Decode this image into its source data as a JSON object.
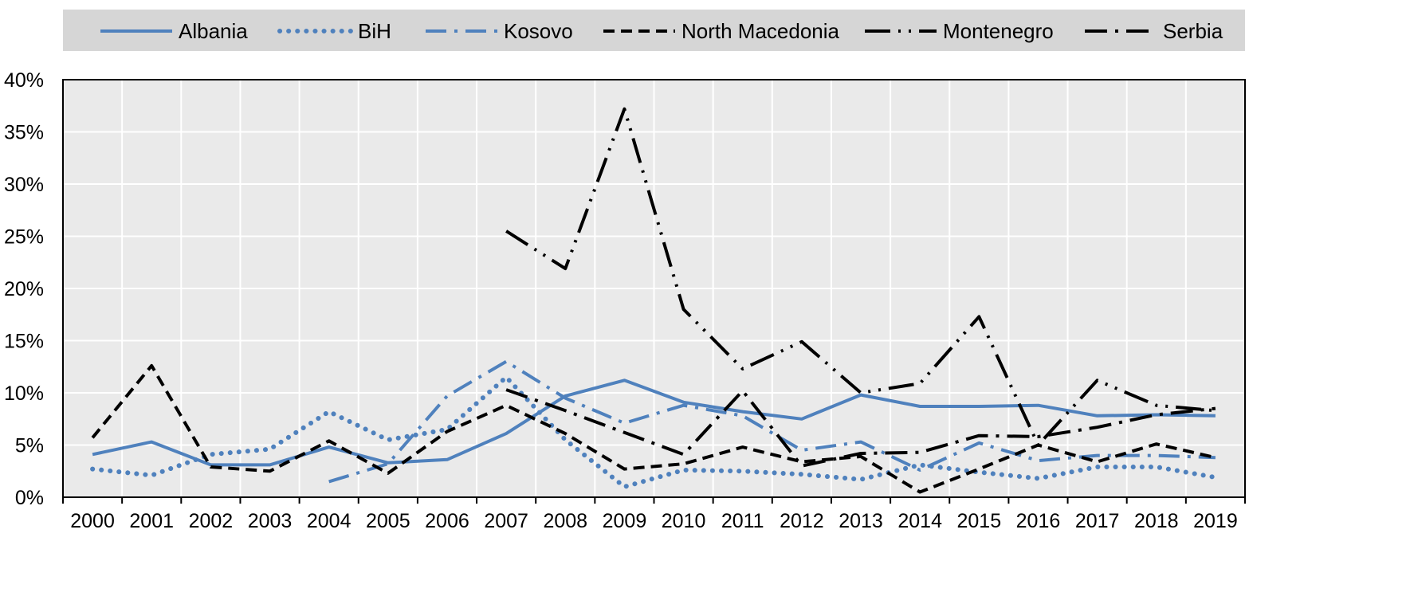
{
  "colors": {
    "blue": "#4f81bd",
    "black": "#000000",
    "legend_bg": "#d6d6d6",
    "plot_bg": "#eaeaea",
    "grid": "#ffffff"
  },
  "chart_data": {
    "type": "line",
    "title": "",
    "xlabel": "",
    "ylabel": "",
    "ylim": [
      0,
      0.4
    ],
    "y_ticks": [
      "0%",
      "5%",
      "10%",
      "15%",
      "20%",
      "25%",
      "30%",
      "35%",
      "40%"
    ],
    "grid": true,
    "legend_position": "top",
    "x": [
      "2000",
      "2001",
      "2002",
      "2003",
      "2004",
      "2005",
      "2006",
      "2007",
      "2008",
      "2009",
      "2010",
      "2011",
      "2012",
      "2013",
      "2014",
      "2015",
      "2016",
      "2017",
      "2018",
      "2019"
    ],
    "series": [
      {
        "name": "Albania",
        "color": "#4f81bd",
        "style": "solid",
        "values": [
          0.041,
          0.053,
          0.031,
          0.031,
          0.048,
          0.033,
          0.036,
          0.061,
          0.097,
          0.112,
          0.091,
          0.082,
          0.075,
          0.098,
          0.087,
          0.087,
          0.088,
          0.078,
          0.079,
          0.078
        ]
      },
      {
        "name": "BiH",
        "color": "#4f81bd",
        "style": "dotted",
        "values": [
          0.027,
          0.021,
          0.041,
          0.046,
          0.082,
          0.055,
          0.065,
          0.115,
          0.055,
          0.01,
          0.026,
          0.025,
          0.022,
          0.017,
          0.031,
          0.024,
          0.018,
          0.029,
          0.029,
          0.019
        ]
      },
      {
        "name": "Kosovo",
        "color": "#4f81bd",
        "style": "dashdot",
        "values": [
          null,
          null,
          null,
          null,
          0.015,
          0.032,
          0.097,
          0.13,
          0.095,
          0.071,
          0.088,
          0.078,
          0.045,
          0.053,
          0.026,
          0.052,
          0.035,
          0.04,
          0.04,
          0.038
        ]
      },
      {
        "name": "North Macedonia",
        "color": "#000000",
        "style": "dashed",
        "values": [
          0.057,
          0.126,
          0.029,
          0.025,
          0.054,
          0.023,
          0.063,
          0.088,
          0.061,
          0.027,
          0.032,
          0.048,
          0.034,
          0.039,
          0.005,
          0.027,
          0.05,
          0.034,
          0.051,
          0.038
        ]
      },
      {
        "name": "Montenegro",
        "color": "#000000",
        "style": "longdashdotdot",
        "values": [
          null,
          null,
          null,
          null,
          null,
          null,
          null,
          0.255,
          0.219,
          0.372,
          0.18,
          0.123,
          0.149,
          0.1,
          0.109,
          0.173,
          0.05,
          0.112,
          0.088,
          0.083
        ]
      },
      {
        "name": "Serbia",
        "color": "#000000",
        "style": "longdashdot",
        "values": [
          null,
          null,
          null,
          null,
          null,
          null,
          null,
          0.103,
          0.083,
          0.062,
          0.041,
          0.102,
          0.03,
          0.042,
          0.043,
          0.059,
          0.058,
          0.067,
          0.079,
          0.085
        ]
      }
    ]
  }
}
